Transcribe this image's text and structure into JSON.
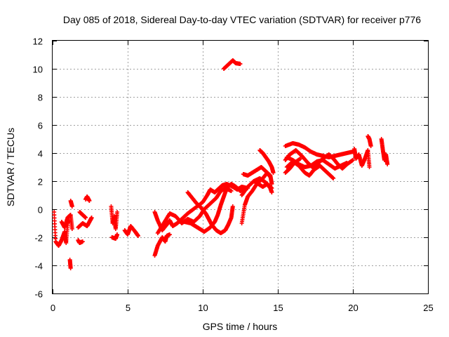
{
  "chart_data": {
    "type": "scatter",
    "title": "Day 085 of 2018, Sidereal Day-to-day VTEC variation (SDTVAR) for receiver p776",
    "xlabel": "GPS time / hours",
    "ylabel": "SDTVAR / TECUs",
    "xlim": [
      0,
      25
    ],
    "ylim": [
      -6,
      12
    ],
    "xticks": [
      0,
      5,
      10,
      15,
      20,
      25
    ],
    "yticks": [
      -6,
      -4,
      -2,
      0,
      2,
      4,
      6,
      8,
      10,
      12
    ],
    "grid": true,
    "marker": "+",
    "series": [
      {
        "name": "SDTVAR",
        "color": "#ff0000",
        "segments": [
          [
            [
              0.1,
              -0.2
            ],
            [
              0.2,
              -2.3
            ],
            [
              0.4,
              -2.6
            ],
            [
              0.6,
              -2.2
            ],
            [
              0.8,
              -1.6
            ],
            [
              0.9,
              -2.4
            ],
            [
              1.0,
              -1.0
            ],
            [
              1.1,
              -0.8
            ]
          ],
          [
            [
              0.6,
              -0.9
            ],
            [
              0.8,
              -1.3
            ],
            [
              1.0,
              -0.6
            ],
            [
              1.2,
              -0.4
            ],
            [
              1.3,
              -1.4
            ]
          ],
          [
            [
              1.15,
              -3.6
            ],
            [
              1.2,
              -4.2
            ]
          ],
          [
            [
              1.2,
              0.6
            ],
            [
              1.3,
              0.2
            ]
          ],
          [
            [
              1.7,
              -2.2
            ],
            [
              1.8,
              -2.4
            ],
            [
              2.0,
              -2.3
            ]
          ],
          [
            [
              1.7,
              -1.3
            ],
            [
              2.0,
              -1.0
            ],
            [
              2.3,
              -1.2
            ],
            [
              2.5,
              -0.8
            ],
            [
              2.6,
              -0.6
            ]
          ],
          [
            [
              1.8,
              -0.2
            ],
            [
              2.0,
              -0.4
            ],
            [
              2.2,
              -0.6
            ]
          ],
          [
            [
              2.2,
              0.7
            ],
            [
              2.3,
              0.9
            ],
            [
              2.45,
              0.6
            ]
          ],
          [
            [
              3.9,
              0.2
            ],
            [
              4.0,
              -1.0
            ],
            [
              4.1,
              -0.5
            ],
            [
              4.2,
              -1.4
            ],
            [
              4.3,
              -0.2
            ]
          ],
          [
            [
              3.95,
              -2.0
            ],
            [
              4.2,
              -2.1
            ],
            [
              4.3,
              -1.8
            ]
          ],
          [
            [
              4.8,
              -1.5
            ],
            [
              5.0,
              -1.8
            ],
            [
              5.2,
              -1.2
            ],
            [
              5.5,
              -1.6
            ],
            [
              5.7,
              -1.9
            ]
          ],
          [
            [
              6.8,
              -3.3
            ],
            [
              7.0,
              -2.6
            ],
            [
              7.3,
              -2.0
            ],
            [
              7.5,
              -2.3
            ],
            [
              7.6,
              -1.9
            ],
            [
              7.8,
              -1.8
            ]
          ],
          [
            [
              6.8,
              -0.2
            ],
            [
              7.0,
              -0.8
            ],
            [
              7.3,
              -1.5
            ],
            [
              7.6,
              -1.1
            ],
            [
              7.8,
              -0.8
            ],
            [
              8.0,
              -1.2
            ],
            [
              8.3,
              -1.0
            ],
            [
              8.6,
              -0.7
            ],
            [
              9.0,
              -0.3
            ],
            [
              9.5,
              0.1
            ],
            [
              10.0,
              0.5
            ],
            [
              10.3,
              1.0
            ],
            [
              10.5,
              1.4
            ],
            [
              10.8,
              1.2
            ],
            [
              11.0,
              1.4
            ],
            [
              11.3,
              1.7
            ],
            [
              11.6,
              1.8
            ],
            [
              12.0,
              1.6
            ],
            [
              12.3,
              1.4
            ],
            [
              12.6,
              1.6
            ],
            [
              13.0,
              1.5
            ]
          ],
          [
            [
              7.0,
              -1.7
            ],
            [
              7.4,
              -1.0
            ],
            [
              7.8,
              -0.3
            ],
            [
              8.2,
              -0.5
            ],
            [
              8.6,
              -1.0
            ],
            [
              9.0,
              -0.7
            ],
            [
              9.4,
              -0.9
            ],
            [
              9.8,
              -0.5
            ],
            [
              10.1,
              0.0
            ],
            [
              10.5,
              0.4
            ],
            [
              10.9,
              0.8
            ],
            [
              11.2,
              1.3
            ],
            [
              11.5,
              1.5
            ],
            [
              11.9,
              1.3
            ]
          ],
          [
            [
              8.8,
              -0.9
            ],
            [
              9.2,
              -1.0
            ],
            [
              9.5,
              -1.2
            ],
            [
              9.8,
              -1.4
            ],
            [
              10.1,
              -1.6
            ],
            [
              10.5,
              -1.3
            ],
            [
              10.8,
              -0.9
            ],
            [
              11.0,
              -0.4
            ],
            [
              11.2,
              0.3
            ],
            [
              11.4,
              0.9
            ],
            [
              11.6,
              1.5
            ],
            [
              11.9,
              1.8
            ],
            [
              12.2,
              1.6
            ],
            [
              12.5,
              1.3
            ],
            [
              12.8,
              1.5
            ]
          ],
          [
            [
              9.0,
              1.2
            ],
            [
              9.3,
              0.8
            ],
            [
              9.6,
              0.4
            ],
            [
              9.9,
              0.1
            ],
            [
              10.2,
              -0.3
            ],
            [
              10.4,
              -0.7
            ],
            [
              10.6,
              -1.1
            ],
            [
              10.9,
              -1.5
            ],
            [
              11.2,
              -1.7
            ],
            [
              11.5,
              -1.5
            ],
            [
              11.7,
              -1.1
            ],
            [
              11.9,
              -0.6
            ],
            [
              12.0,
              0.2
            ]
          ],
          [
            [
              12.6,
              -1.0
            ],
            [
              12.8,
              0.3
            ],
            [
              13.0,
              0.9
            ],
            [
              13.3,
              1.3
            ],
            [
              13.6,
              1.8
            ],
            [
              14.0,
              2.2
            ],
            [
              14.3,
              2.6
            ],
            [
              14.5,
              2.3
            ]
          ],
          [
            [
              12.7,
              2.5
            ],
            [
              13.0,
              2.4
            ],
            [
              13.3,
              2.6
            ],
            [
              13.6,
              2.8
            ],
            [
              13.9,
              3.0
            ],
            [
              14.2,
              2.7
            ],
            [
              14.5,
              2.4
            ],
            [
              14.6,
              1.8
            ]
          ],
          [
            [
              12.6,
              1.0
            ],
            [
              13.0,
              1.6
            ],
            [
              13.4,
              2.0
            ],
            [
              13.8,
              2.2
            ],
            [
              14.2,
              1.9
            ],
            [
              14.5,
              1.5
            ],
            [
              14.6,
              1.2
            ]
          ],
          [
            [
              13.4,
              2.0
            ],
            [
              13.7,
              1.8
            ],
            [
              14.0,
              1.6
            ],
            [
              14.3,
              1.8
            ],
            [
              14.6,
              1.5
            ]
          ],
          [
            [
              13.8,
              4.2
            ],
            [
              14.0,
              4.0
            ],
            [
              14.2,
              3.7
            ],
            [
              14.4,
              3.4
            ],
            [
              14.6,
              3.0
            ],
            [
              14.7,
              2.6
            ]
          ],
          [
            [
              11.4,
              10.0
            ],
            [
              11.7,
              10.3
            ],
            [
              12.0,
              10.6
            ],
            [
              12.2,
              10.4
            ],
            [
              12.5,
              10.35
            ]
          ],
          [
            [
              15.5,
              4.5
            ],
            [
              16.0,
              4.7
            ],
            [
              16.4,
              4.6
            ],
            [
              16.8,
              4.4
            ],
            [
              17.2,
              4.1
            ],
            [
              17.6,
              3.9
            ],
            [
              18.0,
              3.8
            ],
            [
              18.4,
              3.7
            ],
            [
              18.8,
              3.8
            ],
            [
              19.2,
              3.9
            ],
            [
              19.6,
              4.0
            ],
            [
              20.0,
              4.1
            ]
          ],
          [
            [
              15.5,
              3.5
            ],
            [
              15.8,
              3.9
            ],
            [
              16.2,
              4.2
            ],
            [
              16.6,
              3.8
            ],
            [
              17.0,
              3.3
            ],
            [
              17.3,
              3.0
            ],
            [
              17.6,
              3.2
            ],
            [
              18.0,
              3.6
            ],
            [
              18.4,
              3.9
            ],
            [
              18.7,
              3.6
            ],
            [
              19.0,
              3.2
            ],
            [
              19.3,
              2.9
            ],
            [
              19.6,
              3.2
            ],
            [
              20.0,
              3.5
            ]
          ],
          [
            [
              15.6,
              3.0
            ],
            [
              16.0,
              3.4
            ],
            [
              16.4,
              3.1
            ],
            [
              16.8,
              2.6
            ],
            [
              17.1,
              2.4
            ],
            [
              17.4,
              2.8
            ],
            [
              17.8,
              3.1
            ],
            [
              18.1,
              2.8
            ],
            [
              18.4,
              2.5
            ],
            [
              18.7,
              2.2
            ]
          ],
          [
            [
              15.6,
              3.7
            ],
            [
              16.0,
              3.5
            ],
            [
              16.4,
              3.2
            ],
            [
              16.8,
              3.0
            ],
            [
              17.2,
              3.1
            ],
            [
              17.6,
              3.4
            ],
            [
              18.0,
              3.5
            ],
            [
              18.4,
              3.2
            ],
            [
              18.8,
              2.9
            ],
            [
              19.2,
              3.1
            ],
            [
              19.6,
              3.3
            ]
          ],
          [
            [
              15.5,
              2.6
            ],
            [
              15.8,
              2.9
            ],
            [
              16.1,
              3.3
            ],
            [
              16.5,
              3.6
            ]
          ],
          [
            [
              20.1,
              4.3
            ],
            [
              20.2,
              3.6
            ],
            [
              20.4,
              3.9
            ],
            [
              20.6,
              3.1
            ],
            [
              20.8,
              3.6
            ],
            [
              21.0,
              4.2
            ],
            [
              21.1,
              3.0
            ]
          ],
          [
            [
              21.0,
              5.2
            ],
            [
              21.1,
              5.0
            ],
            [
              21.2,
              4.5
            ]
          ],
          [
            [
              21.9,
              5.0
            ],
            [
              22.0,
              4.2
            ],
            [
              22.1,
              3.5
            ],
            [
              22.2,
              3.9
            ],
            [
              22.3,
              3.2
            ]
          ]
        ]
      }
    ]
  }
}
